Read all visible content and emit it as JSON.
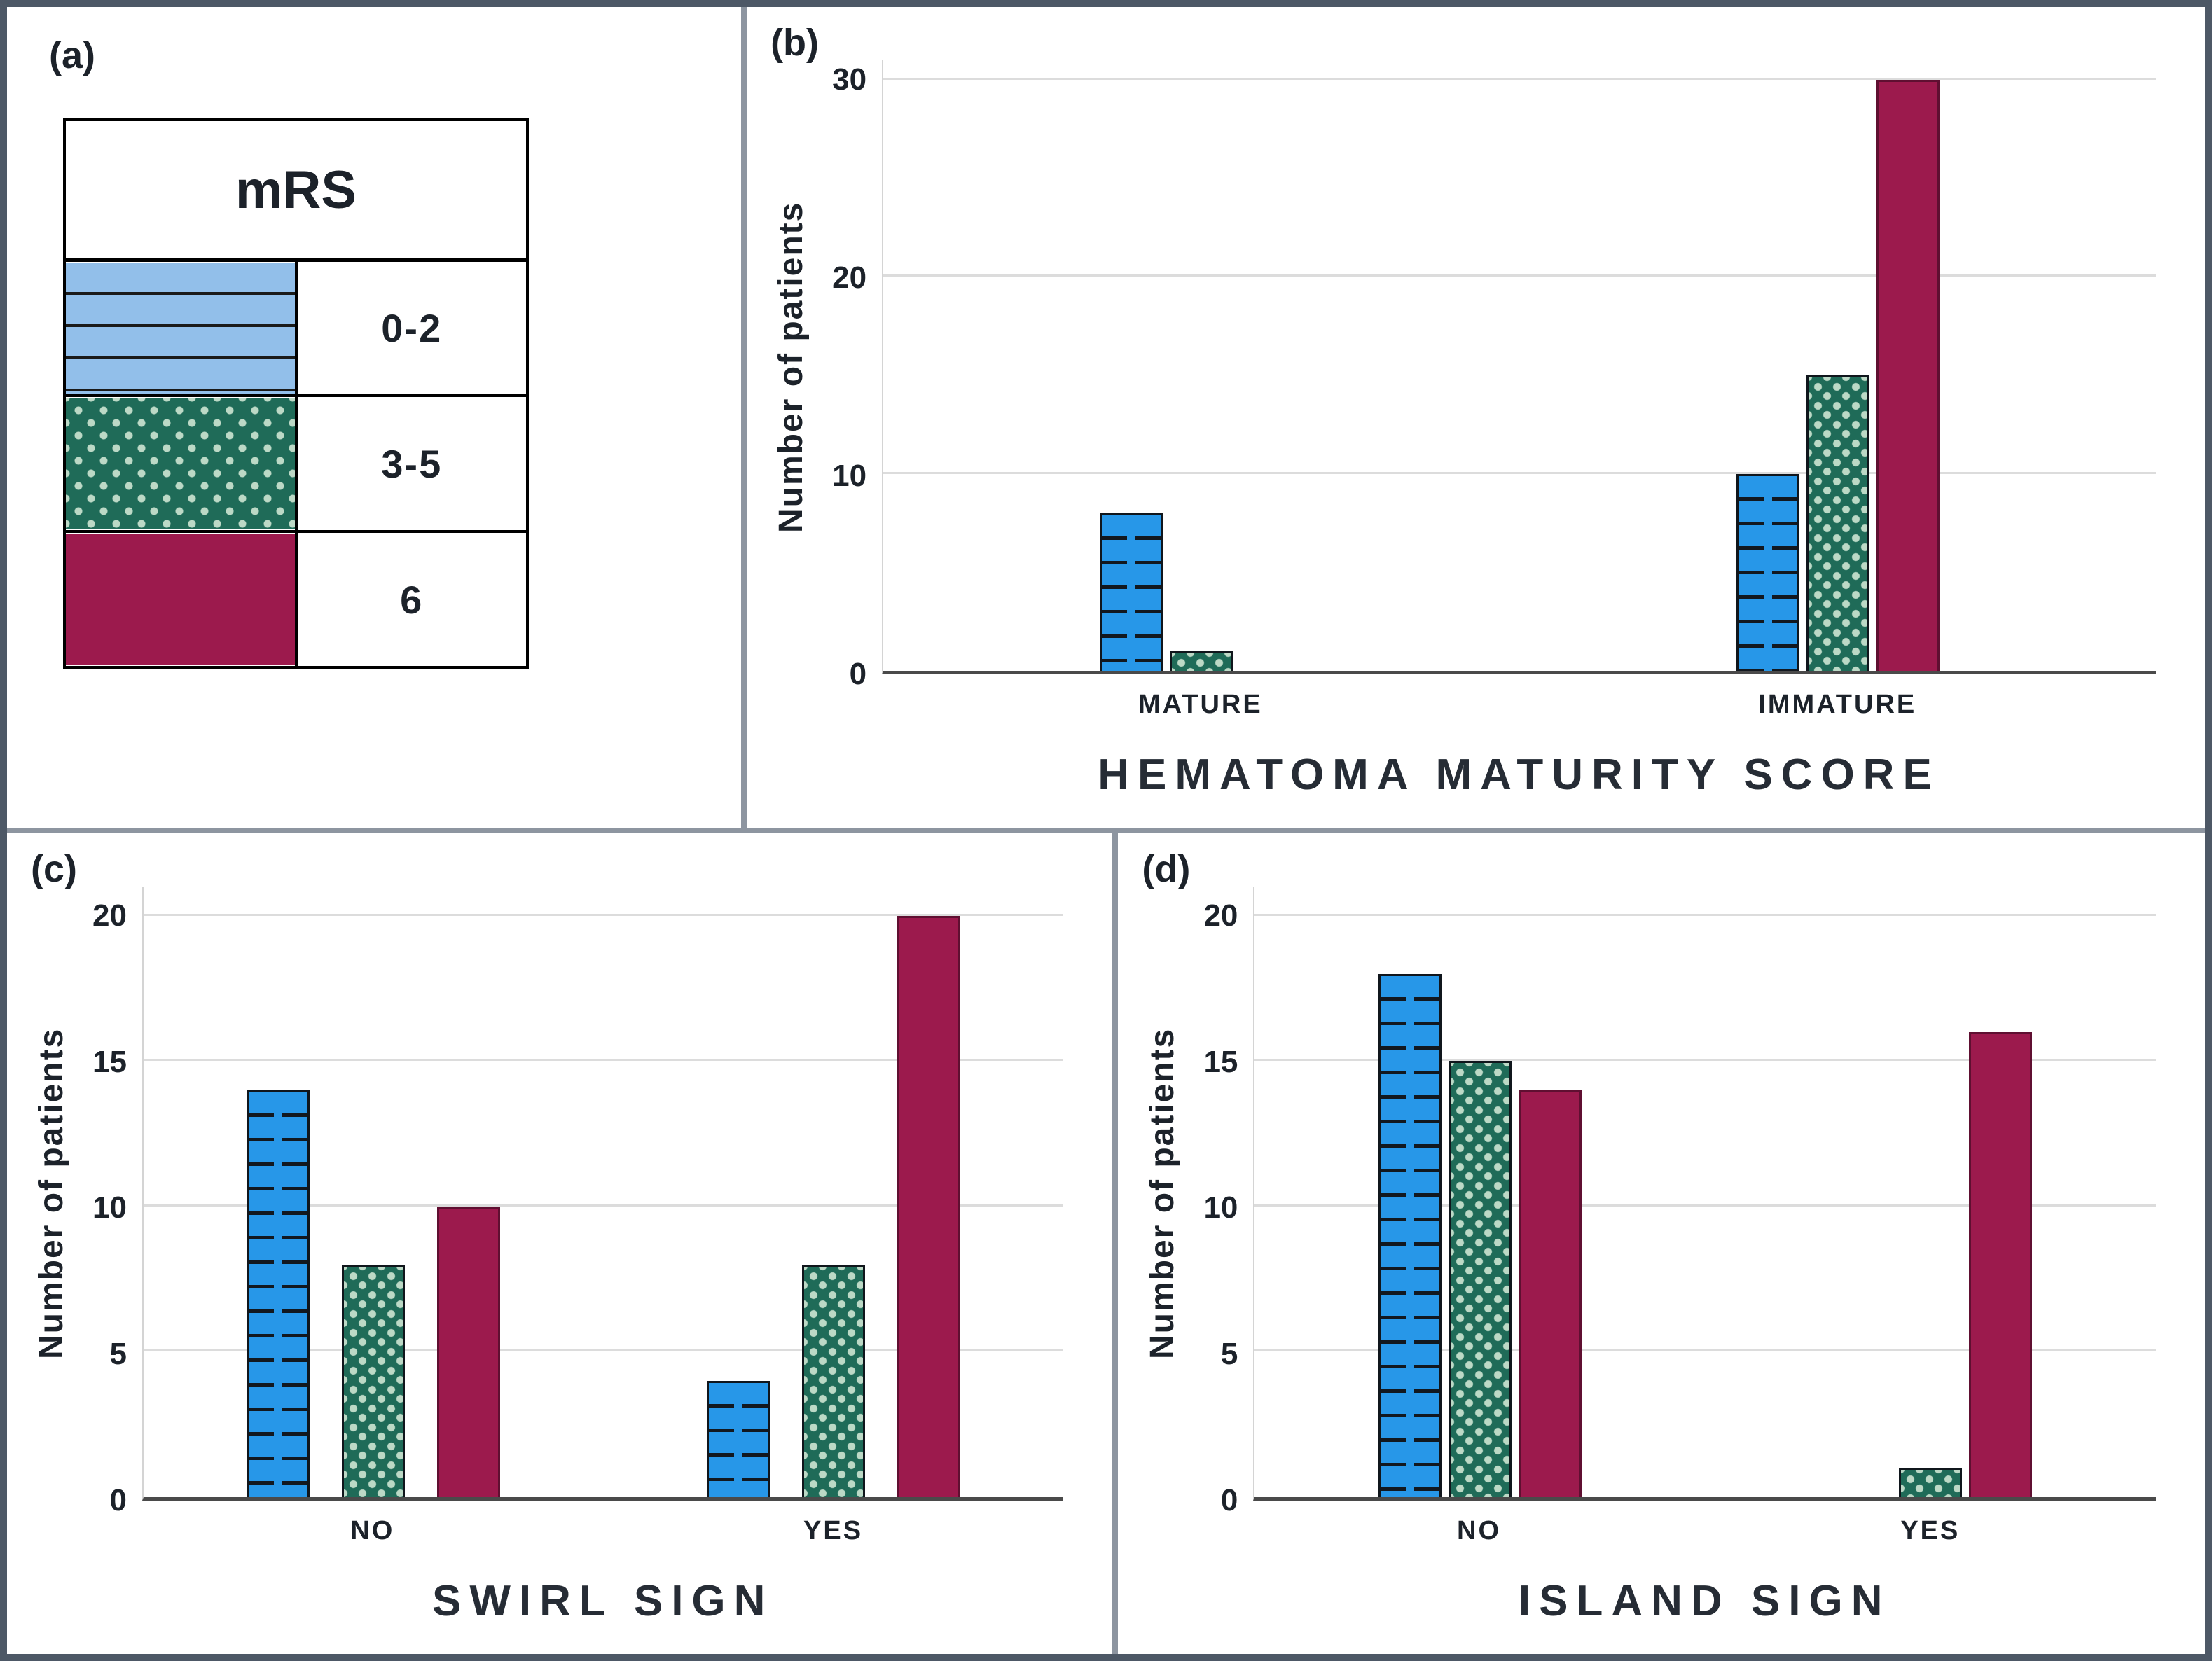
{
  "colors": {
    "blue": "#2797e8",
    "blue_light": "#92bfea",
    "green": "#1f6b58",
    "green_dot": "#bcd9c6",
    "maroon": "#9c1a4d",
    "grid": "#dcdcdc",
    "axis": "#4a4a4a",
    "text": "#1c222a",
    "panel_border": "#8d95a0",
    "outer_border": "#4d5866"
  },
  "legend_panel": {
    "panel_label": "(a)",
    "table_title": "mRS",
    "rows": [
      {
        "swatch": "blue-striped",
        "label": "0-2"
      },
      {
        "swatch": "green-dotted",
        "label": "3-5"
      },
      {
        "swatch": "maroon-solid",
        "label": "6"
      }
    ]
  },
  "chart_data": [
    {
      "panel_label": "(b)",
      "type": "bar",
      "title": "HEMATOMA MATURITY SCORE",
      "ylabel": "Number of patients",
      "ylim": [
        0,
        31
      ],
      "yticks": [
        0,
        10,
        20,
        30
      ],
      "categories": [
        "MATURE",
        "IMMATURE"
      ],
      "grid": true,
      "legend_position": "none",
      "series": [
        {
          "name": "mRS 0-2",
          "pattern": "blue-striped",
          "values": [
            8,
            10
          ]
        },
        {
          "name": "mRS 3-5",
          "pattern": "green-dotted",
          "values": [
            1,
            15
          ]
        },
        {
          "name": "mRS 6",
          "pattern": "maroon-solid",
          "values": [
            0,
            30
          ]
        }
      ]
    },
    {
      "panel_label": "(c)",
      "type": "bar",
      "title": "SWIRL SIGN",
      "ylabel": "Number of patients",
      "ylim": [
        0,
        21
      ],
      "yticks": [
        0,
        5,
        10,
        15,
        20
      ],
      "categories": [
        "NO",
        "YES"
      ],
      "grid": true,
      "legend_position": "none",
      "series": [
        {
          "name": "mRS 0-2",
          "pattern": "blue-striped",
          "values": [
            14,
            4
          ]
        },
        {
          "name": "mRS 3-5",
          "pattern": "green-dotted",
          "values": [
            8,
            8
          ]
        },
        {
          "name": "mRS 6",
          "pattern": "maroon-solid",
          "values": [
            10,
            20
          ]
        }
      ]
    },
    {
      "panel_label": "(d)",
      "type": "bar",
      "title": "ISLAND SIGN",
      "ylabel": "Number of patients",
      "ylim": [
        0,
        21
      ],
      "yticks": [
        0,
        5,
        10,
        15,
        20
      ],
      "categories": [
        "NO",
        "YES"
      ],
      "grid": true,
      "legend_position": "none",
      "series": [
        {
          "name": "mRS 0-2",
          "pattern": "blue-striped",
          "values": [
            18,
            0
          ]
        },
        {
          "name": "mRS 3-5",
          "pattern": "green-dotted",
          "values": [
            15,
            1
          ]
        },
        {
          "name": "mRS 6",
          "pattern": "maroon-solid",
          "values": [
            14,
            16
          ]
        }
      ]
    }
  ]
}
